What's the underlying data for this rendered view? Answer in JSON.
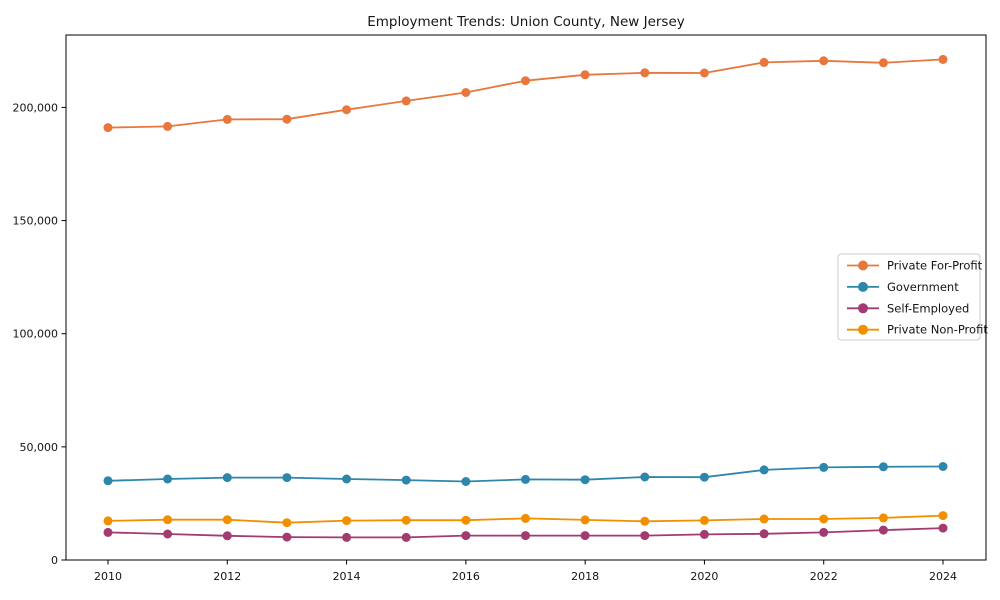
{
  "chart_data": {
    "type": "line",
    "title": "Employment Trends: Union County, New Jersey",
    "xlabel": "",
    "ylabel": "",
    "grid": false,
    "background": "#ffffff",
    "axis_color": "#000000",
    "legend_position": "center right",
    "ylim": [
      0,
      232000
    ],
    "xlim_years": [
      2010,
      2024
    ],
    "x": [
      2010,
      2011,
      2012,
      2013,
      2014,
      2015,
      2016,
      2017,
      2018,
      2019,
      2020,
      2021,
      2022,
      2023,
      2024
    ],
    "x_ticks": [
      {
        "value": 2010,
        "label": "2010"
      },
      {
        "value": 2012,
        "label": "2012"
      },
      {
        "value": 2014,
        "label": "2014"
      },
      {
        "value": 2016,
        "label": "2016"
      },
      {
        "value": 2018,
        "label": "2018"
      },
      {
        "value": 2020,
        "label": "2020"
      },
      {
        "value": 2022,
        "label": "2022"
      },
      {
        "value": 2024,
        "label": "2024"
      }
    ],
    "y_ticks": [
      {
        "value": 0,
        "label": "0"
      },
      {
        "value": 50000,
        "label": "50,000"
      },
      {
        "value": 100000,
        "label": "100,000"
      },
      {
        "value": 150000,
        "label": "150,000"
      },
      {
        "value": 200000,
        "label": "200,000"
      }
    ],
    "series": [
      {
        "name": "Private For-Profit",
        "color": "#E8773D",
        "values": [
          191100,
          191600,
          194700,
          194800,
          199000,
          202900,
          206600,
          211800,
          214400,
          215300,
          215200,
          219900,
          220600,
          219700,
          221200
        ]
      },
      {
        "name": "Government",
        "color": "#2E86AB",
        "values": [
          35000,
          35800,
          36400,
          36400,
          35800,
          35300,
          34700,
          35600,
          35500,
          36700,
          36600,
          39800,
          40900,
          41200,
          41300
        ]
      },
      {
        "name": "Self-Employed",
        "color": "#A23B72",
        "values": [
          12200,
          11500,
          10700,
          10100,
          10000,
          10000,
          10800,
          10800,
          10800,
          10800,
          11300,
          11600,
          12200,
          13200,
          14100
        ]
      },
      {
        "name": "Private Non-Profit",
        "color": "#F18F01",
        "values": [
          17300,
          17800,
          17800,
          16500,
          17400,
          17600,
          17600,
          18400,
          17700,
          17100,
          17500,
          18100,
          18100,
          18600,
          19600
        ]
      }
    ]
  }
}
